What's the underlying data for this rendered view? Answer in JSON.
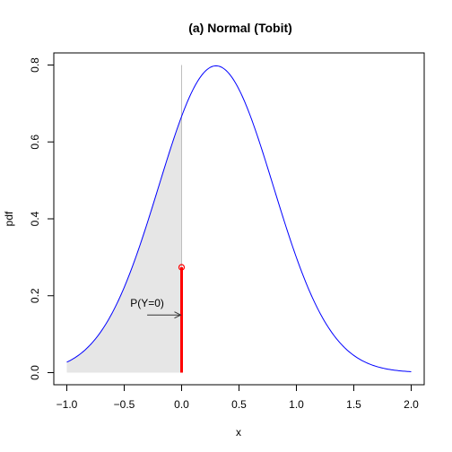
{
  "chart_data": {
    "type": "line",
    "title": "(a) Normal (Tobit)",
    "xlabel": "x",
    "ylabel": "pdf",
    "xlim": [
      -1.0,
      2.0
    ],
    "ylim": [
      0.0,
      0.8
    ],
    "x_ticks": [
      "-1.0",
      "-0.5",
      "0.0",
      "0.5",
      "1.0",
      "1.5",
      "2.0"
    ],
    "y_ticks": [
      "0.0",
      "0.2",
      "0.4",
      "0.6",
      "0.8"
    ],
    "series": [
      {
        "color": "#0000ff",
        "distribution": "normal",
        "mean": 0.3,
        "sd": 0.5,
        "x_range": [
          -1.0,
          2.0
        ]
      }
    ],
    "shaded_region": {
      "x_range": [
        -1.0,
        0.0
      ],
      "color": "#e6e6e6"
    },
    "vertical_guide": {
      "x": 0.0,
      "y_range": [
        0.0,
        0.8
      ],
      "color": "#bebebe"
    },
    "point_mass": {
      "x": 0.0,
      "y": 0.274,
      "color": "#ff0000"
    },
    "annotation": {
      "text": "P(Y=0)",
      "arrow_from_x": -0.3,
      "arrow_to_x": 0.0,
      "arrow_y": 0.15,
      "text_x": -0.3,
      "text_y": 0.172
    }
  }
}
